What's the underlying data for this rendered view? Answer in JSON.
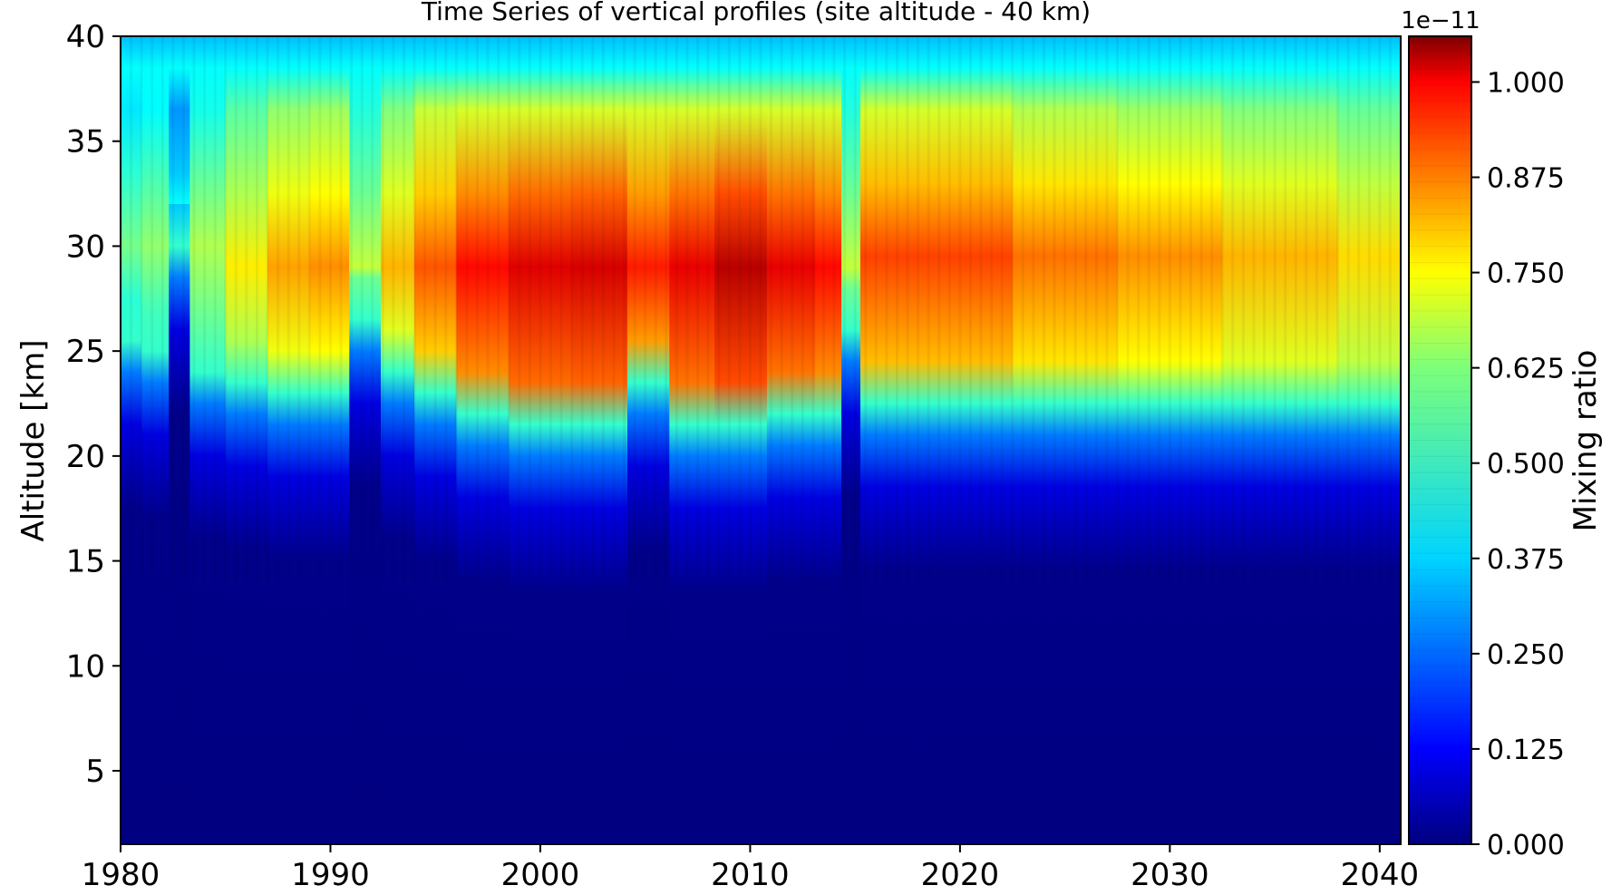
{
  "chart_data": {
    "type": "heatmap",
    "title": "Time Series of vertical profiles (site altitude - 40 km)",
    "xlabel": "",
    "ylabel": "Altitude [km]",
    "xlim": [
      1980,
      2041
    ],
    "ylim": [
      1.5,
      40
    ],
    "x_ticks": [
      "1980",
      "1990",
      "2000",
      "2010",
      "2020",
      "2030",
      "2040"
    ],
    "y_ticks": [
      "5",
      "10",
      "15",
      "20",
      "25",
      "30",
      "35",
      "40"
    ],
    "colorbar": {
      "label": "Mixing ratio",
      "scale_label": "1e−11",
      "range": [
        0,
        1.06
      ],
      "ticks": [
        "0.000",
        "0.125",
        "0.250",
        "0.375",
        "0.500",
        "0.625",
        "0.750",
        "0.875",
        "1.000"
      ],
      "colormap": "jet"
    },
    "columns": [
      {
        "year": 1980.0,
        "peak_alt": 30,
        "peak": 0.52,
        "bottom": 25.5
      },
      {
        "year": 1982.0,
        "peak_alt": 30,
        "peak": 0.55,
        "bottom": 25.0
      },
      {
        "year": 1982.6,
        "peak_alt": 30,
        "peak": 0.4,
        "bottom": 30.0
      },
      {
        "year": 1984.0,
        "peak_alt": 30,
        "peak": 0.58,
        "bottom": 24.0
      },
      {
        "year": 1986.0,
        "peak_alt": 29,
        "peak": 0.68,
        "bottom": 23.5
      },
      {
        "year": 1988.0,
        "peak_alt": 29,
        "peak": 0.76,
        "bottom": 23.0
      },
      {
        "year": 1990.0,
        "peak_alt": 29,
        "peak": 0.78,
        "bottom": 23.0
      },
      {
        "year": 1991.8,
        "peak_alt": 29,
        "peak": 0.6,
        "bottom": 26.5
      },
      {
        "year": 1993.0,
        "peak_alt": 29,
        "peak": 0.74,
        "bottom": 24.0
      },
      {
        "year": 1995.0,
        "peak_alt": 29,
        "peak": 0.84,
        "bottom": 23.0
      },
      {
        "year": 1997.0,
        "peak_alt": 29,
        "peak": 0.92,
        "bottom": 22.0
      },
      {
        "year": 2000.0,
        "peak_alt": 29,
        "peak": 0.96,
        "bottom": 21.5
      },
      {
        "year": 2003.0,
        "peak_alt": 29,
        "peak": 0.97,
        "bottom": 21.5
      },
      {
        "year": 2005.3,
        "peak_alt": 29,
        "peak": 0.9,
        "bottom": 23.5
      },
      {
        "year": 2007.0,
        "peak_alt": 29,
        "peak": 0.95,
        "bottom": 21.5
      },
      {
        "year": 2009.6,
        "peak_alt": 29,
        "peak": 1.0,
        "bottom": 21.5
      },
      {
        "year": 2012.0,
        "peak_alt": 29,
        "peak": 0.95,
        "bottom": 22.0
      },
      {
        "year": 2014.2,
        "peak_alt": 29,
        "peak": 0.92,
        "bottom": 22.0
      },
      {
        "year": 2014.5,
        "peak_alt": 29,
        "peak": 0.6,
        "bottom": 26.0
      },
      {
        "year": 2016.0,
        "peak_alt": 29.5,
        "peak": 0.86,
        "bottom": 22.5
      },
      {
        "year": 2020.0,
        "peak_alt": 29.5,
        "peak": 0.86,
        "bottom": 22.5
      },
      {
        "year": 2025.0,
        "peak_alt": 29.5,
        "peak": 0.81,
        "bottom": 22.5
      },
      {
        "year": 2030.0,
        "peak_alt": 29.5,
        "peak": 0.78,
        "bottom": 22.5
      },
      {
        "year": 2035.0,
        "peak_alt": 29.5,
        "peak": 0.74,
        "bottom": 22.5
      },
      {
        "year": 2041.0,
        "peak_alt": 29.5,
        "peak": 0.7,
        "bottom": 22.5
      }
    ]
  }
}
